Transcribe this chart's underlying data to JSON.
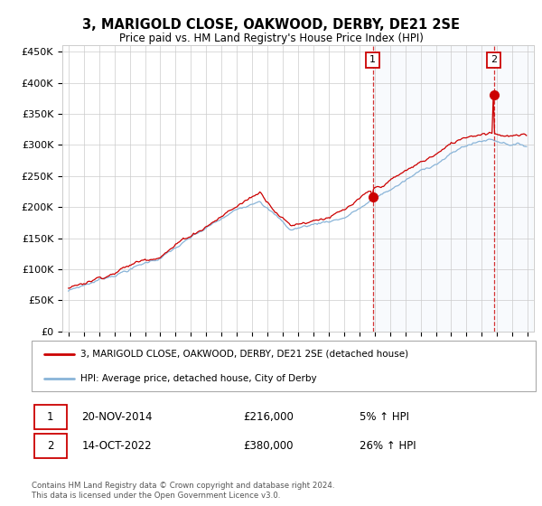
{
  "title": "3, MARIGOLD CLOSE, OAKWOOD, DERBY, DE21 2SE",
  "subtitle": "Price paid vs. HM Land Registry's House Price Index (HPI)",
  "ylim": [
    0,
    460000
  ],
  "yticks": [
    0,
    50000,
    100000,
    150000,
    200000,
    250000,
    300000,
    350000,
    400000,
    450000
  ],
  "ytick_labels": [
    "£0",
    "£50K",
    "£100K",
    "£150K",
    "£200K",
    "£250K",
    "£300K",
    "£350K",
    "£400K",
    "£450K"
  ],
  "x_start_year": 1995,
  "x_end_year": 2025,
  "price_color": "#cc0000",
  "hpi_line_color": "#89b4d8",
  "sale1_x": 2014.88,
  "sale1_price": 216000,
  "sale2_x": 2022.79,
  "sale2_price": 380000,
  "shade_alpha": 0.12,
  "legend_line1": "3, MARIGOLD CLOSE, OAKWOOD, DERBY, DE21 2SE (detached house)",
  "legend_line2": "HPI: Average price, detached house, City of Derby",
  "sale1_date": "20-NOV-2014",
  "sale1_pstr": "£216,000",
  "sale1_hpi": "5% ↑ HPI",
  "sale2_date": "14-OCT-2022",
  "sale2_pstr": "£380,000",
  "sale2_hpi": "26% ↑ HPI",
  "footer": "Contains HM Land Registry data © Crown copyright and database right 2024.\nThis data is licensed under the Open Government Licence v3.0."
}
